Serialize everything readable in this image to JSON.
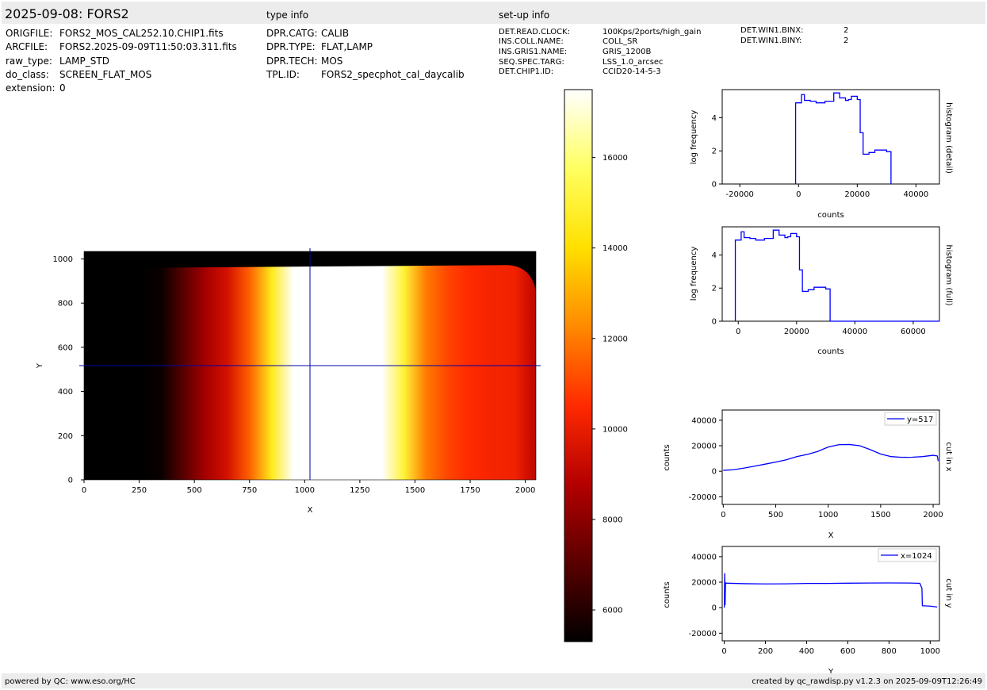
{
  "header": {
    "title": "2025-09-08: FORS2",
    "type_info_label": "type info",
    "setup_info_label": "set-up info"
  },
  "file_info": [
    {
      "key": "ORIGFILE:",
      "value": "FORS2_MOS_CAL252.10.CHIP1.fits"
    },
    {
      "key": "ARCFILE:",
      "value": "FORS2.2025-09-09T11:50:03.311.fits"
    },
    {
      "key": "raw_type:",
      "value": "LAMP_STD"
    },
    {
      "key": "do_class:",
      "value": "SCREEN_FLAT_MOS"
    },
    {
      "key": "extension:",
      "value": "0"
    }
  ],
  "type_info": [
    {
      "key": "DPR.CATG:",
      "value": "CALIB"
    },
    {
      "key": "DPR.TYPE:",
      "value": "FLAT,LAMP"
    },
    {
      "key": "DPR.TECH:",
      "value": "MOS"
    },
    {
      "key": "TPL.ID:",
      "value": "FORS2_specphot_cal_daycalib"
    }
  ],
  "setup_info": [
    {
      "key": "DET.READ.CLOCK:",
      "value": "100Kps/2ports/high_gain"
    },
    {
      "key": "INS.COLL.NAME:",
      "value": "COLL_SR"
    },
    {
      "key": "INS.GRIS1.NAME:",
      "value": "GRIS_1200B"
    },
    {
      "key": "SEQ.SPEC.TARG:",
      "value": "LSS_1.0_arcsec"
    },
    {
      "key": "DET.CHIP1.ID:",
      "value": "CCID20-14-5-3"
    }
  ],
  "setup_info2": [
    {
      "key": "DET.WIN1.BINX:",
      "value": "2"
    },
    {
      "key": "DET.WIN1.BINY:",
      "value": "2"
    }
  ],
  "footer": {
    "left": "powered by QC: www.eso.org/HC",
    "right": "created by qc_rawdisp.py v1.2.3 on 2025-09-09T12:26:49"
  },
  "colors": {
    "line": "#0000ff",
    "band": "#ececec",
    "colormap": [
      "#000000",
      "#5a0000",
      "#b40000",
      "#ff2a00",
      "#ff8a00",
      "#ffe000",
      "#ffff60",
      "#ffffff"
    ]
  },
  "chart_data": [
    {
      "type": "heatmap",
      "xlabel": "X",
      "ylabel": "Y",
      "xlim": [
        0,
        2048
      ],
      "ylim": [
        0,
        1034
      ],
      "xticks": [
        0,
        250,
        500,
        750,
        1000,
        1250,
        1500,
        1750,
        2000
      ],
      "yticks": [
        0,
        200,
        400,
        600,
        800,
        1000
      ],
      "illuminated_y": [
        0,
        965
      ],
      "profile_x": [
        0,
        250,
        350,
        450,
        550,
        650,
        750,
        850,
        950,
        1050,
        1150,
        1250,
        1350,
        1450,
        1550,
        1650,
        1750,
        1850,
        1950,
        2048
      ],
      "profile_counts": [
        4500,
        4600,
        5500,
        7000,
        8500,
        9500,
        11500,
        14500,
        18000,
        19500,
        20000,
        19800,
        18500,
        15000,
        12000,
        11000,
        10500,
        10300,
        10200,
        9000
      ],
      "crosshair": {
        "x": 1024,
        "y": 517
      },
      "colorbar": {
        "vmin": 5300,
        "vmax": 17500,
        "ticks": [
          6000,
          8000,
          10000,
          12000,
          14000,
          16000
        ]
      }
    },
    {
      "type": "line",
      "name": "histogram (detail)",
      "xlabel": "counts",
      "ylabel": "log frequency",
      "xlim": [
        -26000,
        48000
      ],
      "ylim": [
        0,
        5.7
      ],
      "xticks": [
        -20000,
        0,
        20000,
        40000
      ],
      "yticks": [
        0,
        2,
        4
      ],
      "x": [
        -1000,
        -1000,
        1000,
        2000,
        4000,
        6000,
        9000,
        12000,
        14000,
        16000,
        17000,
        18000,
        20000,
        21000,
        22000,
        24000,
        26000,
        28000,
        30000,
        31500
      ],
      "y": [
        0,
        4.9,
        5.4,
        5.05,
        5.0,
        4.9,
        5.0,
        5.5,
        5.2,
        5.05,
        5.1,
        5.3,
        5.1,
        3.1,
        1.8,
        1.9,
        2.05,
        2.05,
        1.95,
        0
      ]
    },
    {
      "type": "line",
      "name": "histogram (full)",
      "xlabel": "counts",
      "ylabel": "log frequency",
      "xlim": [
        -5500,
        69000
      ],
      "ylim": [
        0,
        5.7
      ],
      "xticks": [
        0,
        20000,
        40000,
        60000
      ],
      "yticks": [
        0,
        2,
        4
      ],
      "x": [
        -1000,
        -1000,
        1000,
        2000,
        4000,
        6000,
        9000,
        12000,
        14000,
        16000,
        17000,
        18000,
        20000,
        21000,
        22000,
        24000,
        26000,
        28000,
        30000,
        31500,
        31500,
        69000
      ],
      "y": [
        0,
        4.9,
        5.4,
        5.05,
        5.0,
        4.9,
        5.0,
        5.5,
        5.2,
        5.05,
        5.1,
        5.3,
        5.1,
        3.1,
        1.8,
        1.9,
        2.05,
        2.05,
        1.95,
        0,
        0,
        0
      ]
    },
    {
      "type": "line",
      "name": "cut in x",
      "legend": "y=517",
      "xlabel": "X",
      "ylabel": "counts",
      "xlim": [
        -10,
        2060
      ],
      "ylim": [
        -26000,
        48000
      ],
      "xticks": [
        0,
        500,
        1000,
        1500,
        2000
      ],
      "yticks": [
        -20000,
        0,
        20000,
        40000
      ],
      "x": [
        0,
        100,
        200,
        300,
        400,
        500,
        600,
        700,
        800,
        900,
        1000,
        1100,
        1200,
        1300,
        1400,
        1500,
        1600,
        1700,
        1800,
        1900,
        2000,
        2040,
        2048
      ],
      "y": [
        700,
        1200,
        2500,
        4000,
        5600,
        7200,
        9000,
        11500,
        13200,
        15500,
        19000,
        20800,
        21000,
        20000,
        17000,
        13500,
        11500,
        10900,
        11000,
        11500,
        12500,
        12000,
        8000
      ]
    },
    {
      "type": "line",
      "name": "cut in y",
      "legend": "x=1024",
      "xlabel": "Y",
      "ylabel": "counts",
      "xlim": [
        -10,
        1045
      ],
      "ylim": [
        -26000,
        48000
      ],
      "xticks": [
        0,
        200,
        400,
        600,
        800,
        1000
      ],
      "yticks": [
        -20000,
        0,
        20000,
        40000
      ],
      "x": [
        0,
        2,
        4,
        6,
        10,
        100,
        200,
        300,
        400,
        500,
        600,
        700,
        800,
        900,
        950,
        960,
        962,
        1000,
        1034
      ],
      "y": [
        0,
        27000,
        2000,
        19500,
        19200,
        18800,
        18600,
        18700,
        19000,
        19000,
        19200,
        19300,
        19400,
        19300,
        19100,
        15000,
        1500,
        1200,
        500
      ]
    }
  ]
}
